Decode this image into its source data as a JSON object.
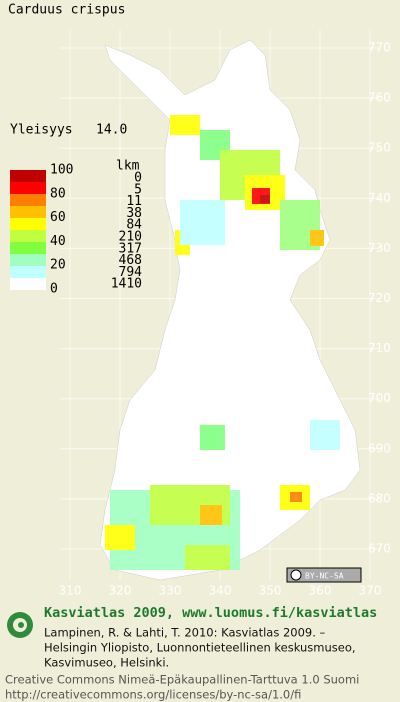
{
  "title": "Carduus crispus",
  "frequency": {
    "label": "Yleisyys",
    "value": "14.0"
  },
  "legend": {
    "scale_labels": [
      100,
      80,
      60,
      40,
      20,
      0
    ],
    "count_header": "lkm",
    "counts": [
      0,
      5,
      11,
      38,
      84,
      210,
      317,
      468,
      794,
      1410
    ]
  },
  "map": {
    "y_labels": [
      770,
      760,
      750,
      740,
      730,
      720,
      710,
      700,
      690,
      680,
      670
    ],
    "x_labels": [
      310,
      320,
      330,
      340,
      350,
      360,
      370
    ]
  },
  "license_badge": "BY-NC-SA",
  "credits": {
    "heading": "Kasviatlas 2009, www.luomus.fi/kasviatlas",
    "citation": [
      "Lampinen, R. & Lahti, T. 2010: Kasviatlas 2009. –",
      "Helsingin Yliopisto, Luonnontieteellinen keskusmuseo,",
      "Kasvimuseo, Helsinki."
    ],
    "license": [
      "Creative Commons Nimeä-Epäkaupallinen-Tarttuva 1.0 Suomi",
      "http://creativecommons.org/licenses/by-nc-sa/1.0/fi"
    ]
  }
}
